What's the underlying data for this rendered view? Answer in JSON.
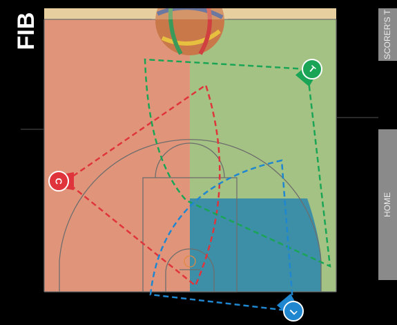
{
  "header": {
    "logo": "FIB"
  },
  "side_buttons": [
    "SCORER'S T",
    "HOME"
  ],
  "referees": [
    {
      "label": "C",
      "color": "#e0343c"
    },
    {
      "label": "T",
      "color": "#1aa556"
    },
    {
      "label": "L",
      "color": "#1f86d0"
    }
  ]
}
